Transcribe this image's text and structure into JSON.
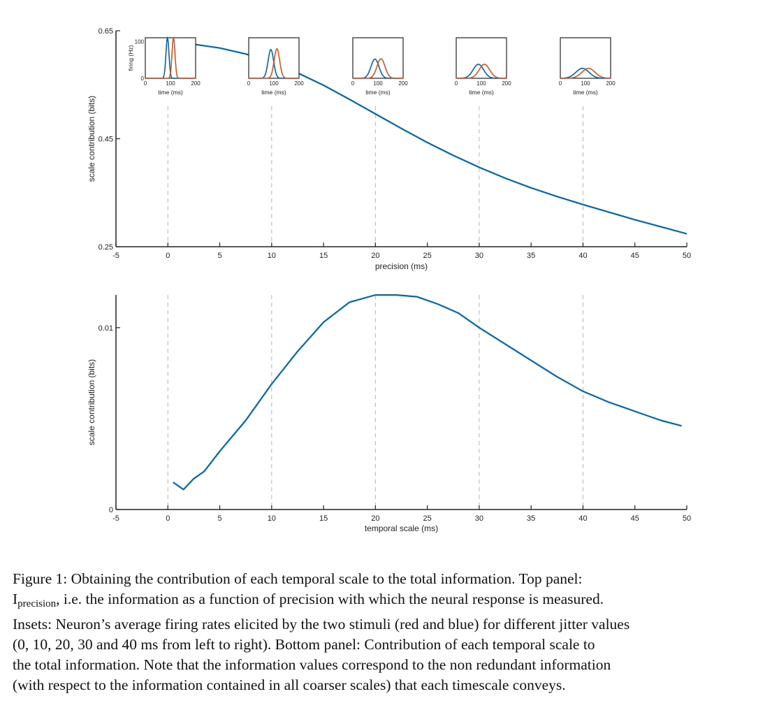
{
  "chart_data": [
    {
      "type": "line",
      "panel": "top",
      "xlabel": "precision (ms)",
      "ylabel": "scale contribution (bits)",
      "xlim": [
        -5,
        50
      ],
      "ylim": [
        0.25,
        0.65
      ],
      "xticks": [
        -5,
        0,
        5,
        10,
        15,
        20,
        25,
        30,
        35,
        40,
        45,
        50
      ],
      "yticks": [
        0.25,
        0.45,
        0.65
      ],
      "ytick_labels": [
        "0.25",
        "0.45",
        "0.65"
      ],
      "vlines": [
        0,
        10,
        20,
        30,
        40
      ],
      "grid": false,
      "color": "#0066b0",
      "series": [
        {
          "x": [
            0,
            2.5,
            5,
            7.5,
            10,
            12.5,
            15,
            17.5,
            20,
            22.5,
            25,
            27.5,
            30,
            32.5,
            35,
            37.5,
            40,
            42.5,
            45,
            47.5,
            50
          ],
          "y": [
            0.628,
            0.625,
            0.618,
            0.607,
            0.592,
            0.572,
            0.549,
            0.523,
            0.496,
            0.469,
            0.443,
            0.419,
            0.397,
            0.377,
            0.359,
            0.343,
            0.328,
            0.314,
            0.3,
            0.287,
            0.274
          ]
        }
      ]
    },
    {
      "type": "line",
      "panel": "bottom",
      "xlabel": "temporal scale (ms)",
      "ylabel": "scale contribution (bits)",
      "xlim": [
        -5,
        50
      ],
      "ylim": [
        0,
        0.0118
      ],
      "xticks": [
        -5,
        0,
        5,
        10,
        15,
        20,
        25,
        30,
        35,
        40,
        45,
        50
      ],
      "yticks": [
        0,
        0.01
      ],
      "ytick_labels": [
        "0",
        "0.01"
      ],
      "vlines": [
        0,
        10,
        20,
        30,
        40
      ],
      "grid": false,
      "color": "#0066b0",
      "series": [
        {
          "x": [
            0.5,
            1.5,
            2.5,
            3.5,
            5,
            7.5,
            10,
            12.5,
            15,
            17.5,
            20,
            22,
            24,
            26,
            28,
            30,
            32.5,
            35,
            37.5,
            40,
            42.5,
            45,
            47.5,
            49.5
          ],
          "y": [
            0.0015,
            0.0011,
            0.0017,
            0.0021,
            0.0032,
            0.0049,
            0.0069,
            0.0087,
            0.0103,
            0.0114,
            0.0118,
            0.0118,
            0.0117,
            0.0113,
            0.0108,
            0.01,
            0.0091,
            0.0082,
            0.0073,
            0.0065,
            0.0059,
            0.0054,
            0.0049,
            0.0046
          ]
        }
      ]
    }
  ],
  "insets": {
    "xlabel": "time (ms)",
    "ylabel": "firing (Hz)",
    "xticks": [
      0,
      100,
      200
    ],
    "yticks": [
      0,
      100
    ],
    "colors": {
      "blue": "#0066b0",
      "red": "#d9531e"
    },
    "jitter_values": [
      0,
      10,
      20,
      30,
      40
    ],
    "panels": [
      {
        "jitter": 0,
        "blue_peak": 110,
        "red_peak": 110
      },
      {
        "jitter": 10,
        "blue_peak": 78,
        "red_peak": 80
      },
      {
        "jitter": 20,
        "blue_peak": 52,
        "red_peak": 53
      },
      {
        "jitter": 30,
        "blue_peak": 38,
        "red_peak": 38
      },
      {
        "jitter": 40,
        "blue_peak": 27,
        "red_peak": 27
      }
    ]
  },
  "caption": {
    "line1": "Figure 1: Obtaining the contribution of each temporal scale to the total information. Top panel:",
    "line2_main": "I",
    "line2_sub": "precision",
    "line2_rest": ", i.e. the information as a function of precision with which the neural response is measured.",
    "line3": "Insets: Neuron’s average firing rates elicited by the two stimuli (red and blue) for different jitter values",
    "line4": "(0, 10, 20, 30 and 40 ms from left to right). Bottom panel: Contribution of each temporal scale to",
    "line5": "the total information. Note that the information values correspond to the non redundant information",
    "line6": "(with respect to the information contained in all coarser scales) that each timescale conveys."
  }
}
